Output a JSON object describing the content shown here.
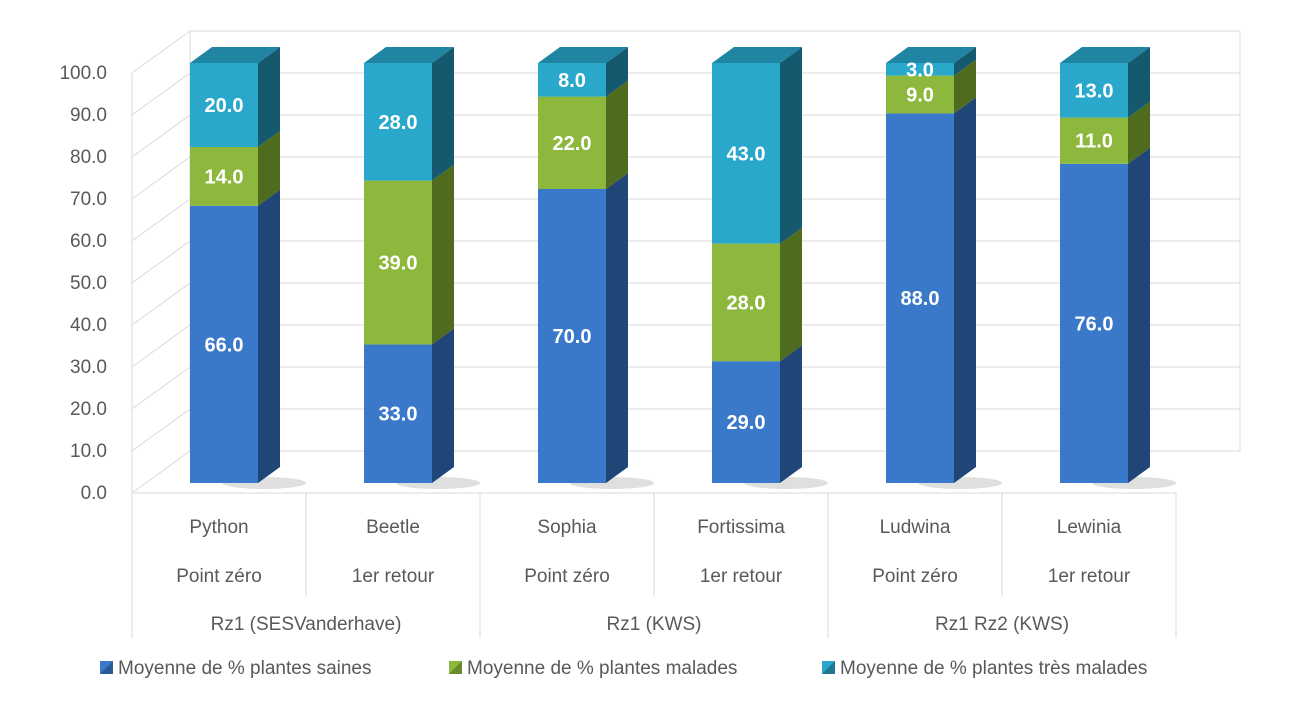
{
  "chart_data": {
    "type": "bar",
    "stacked": true,
    "three_d": true,
    "ylim": [
      0,
      100
    ],
    "y_ticks": [
      "0.0",
      "10.0",
      "20.0",
      "30.0",
      "40.0",
      "50.0",
      "60.0",
      "70.0",
      "80.0",
      "90.0",
      "100.0"
    ],
    "grid": true,
    "categories": [
      {
        "name": "Python",
        "sub": "Point zéro",
        "group": "Rz1 (SESVanderhave)"
      },
      {
        "name": "Beetle",
        "sub": "1er retour",
        "group": "Rz1 (SESVanderhave)"
      },
      {
        "name": "Sophia",
        "sub": "Point zéro",
        "group": "Rz1 (KWS)"
      },
      {
        "name": "Fortissima",
        "sub": "1er retour",
        "group": "Rz1 (KWS)"
      },
      {
        "name": "Ludwina",
        "sub": "Point zéro",
        "group": "Rz1 Rz2 (KWS)"
      },
      {
        "name": "Lewinia",
        "sub": "1er retour",
        "group": "Rz1 Rz2 (KWS)"
      }
    ],
    "groups": [
      "Rz1 (SESVanderhave)",
      "Rz1 (KWS)",
      "Rz1 Rz2 (KWS)"
    ],
    "series": [
      {
        "name": "Moyenne de % plantes saines",
        "values": [
          66.0,
          33.0,
          70.0,
          29.0,
          88.0,
          76.0
        ],
        "labels": [
          "66.0",
          "33.0",
          "70.0",
          "29.0",
          "88.0",
          "76.0"
        ],
        "color": "#3A78C9",
        "dark": "#1F4677",
        "light": "#2B5EA1"
      },
      {
        "name": "Moyenne de % plantes malades",
        "values": [
          14.0,
          39.0,
          22.0,
          28.0,
          9.0,
          11.0
        ],
        "labels": [
          "14.0",
          "39.0",
          "22.0",
          "28.0",
          "9.0",
          "11.0"
        ],
        "color": "#8DB83D",
        "dark": "#4F6B1E",
        "light": "#76A02F"
      },
      {
        "name": "Moyenne de % plantes très malades",
        "values": [
          20.0,
          28.0,
          8.0,
          43.0,
          3.0,
          13.0
        ],
        "labels": [
          "20.0",
          "28.0",
          "8.0",
          "43.0",
          "3.0",
          "13.0"
        ],
        "color": "#2AA8CC",
        "dark": "#15596E",
        "light": "#1F85A3"
      }
    ],
    "legend_position": "bottom"
  }
}
